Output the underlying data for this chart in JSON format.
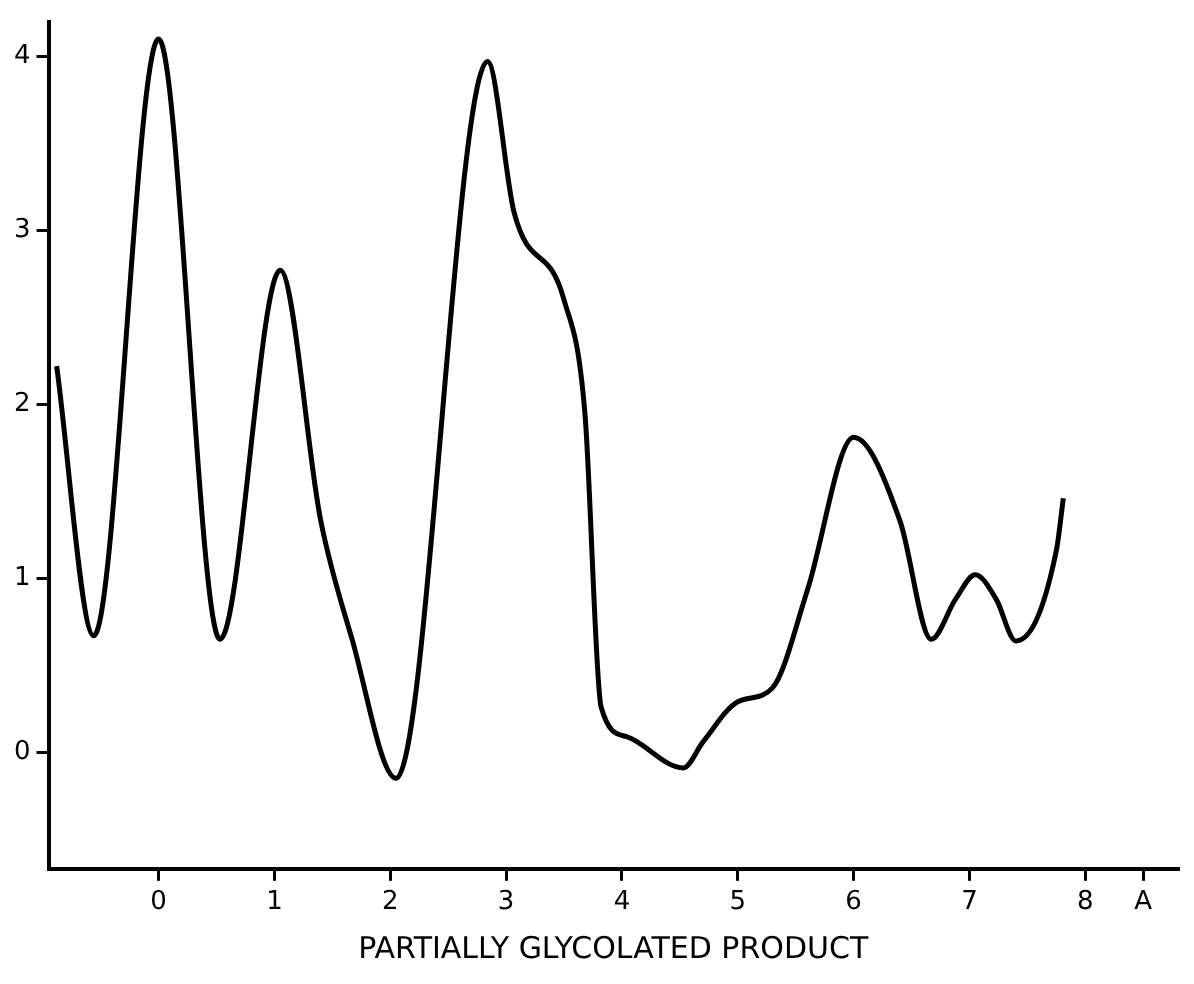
{
  "chart_data": {
    "type": "line",
    "xlabel": "PARTIALLY GLYCOLATED PRODUCT",
    "x": [
      -0.88,
      -0.56,
      0,
      0.53,
      1.05,
      1.4,
      1.67,
      2.05,
      2.84,
      3.07,
      3.5,
      3.68,
      3.82,
      4.04,
      4.53,
      4.7,
      5.0,
      5.3,
      5.6,
      6.0,
      6.4,
      6.67,
      6.88,
      7.05,
      7.23,
      7.4,
      7.75,
      7.81
    ],
    "series": [
      {
        "color": "#000000",
        "values": [
          2.22,
          0.67,
          4.1,
          0.65,
          2.77,
          1.33,
          0.65,
          -0.15,
          3.97,
          3.1,
          2.6,
          1.95,
          0.26,
          0.09,
          -0.09,
          0.06,
          0.29,
          0.37,
          0.93,
          1.81,
          1.33,
          0.65,
          0.88,
          1.02,
          0.88,
          0.64,
          1.16,
          1.46
        ]
      }
    ],
    "xlim": [
      -0.95,
      8.8
    ],
    "ylim": [
      -0.67,
      4.2
    ],
    "xticks": [
      0,
      1,
      2,
      3,
      4,
      5,
      6,
      7,
      8,
      {
        "value": 8.5,
        "label": "A"
      }
    ],
    "yticks": [
      0,
      1,
      2,
      3,
      4
    ],
    "grid": false,
    "legend": false,
    "marker": "none",
    "line_style": "solid"
  }
}
